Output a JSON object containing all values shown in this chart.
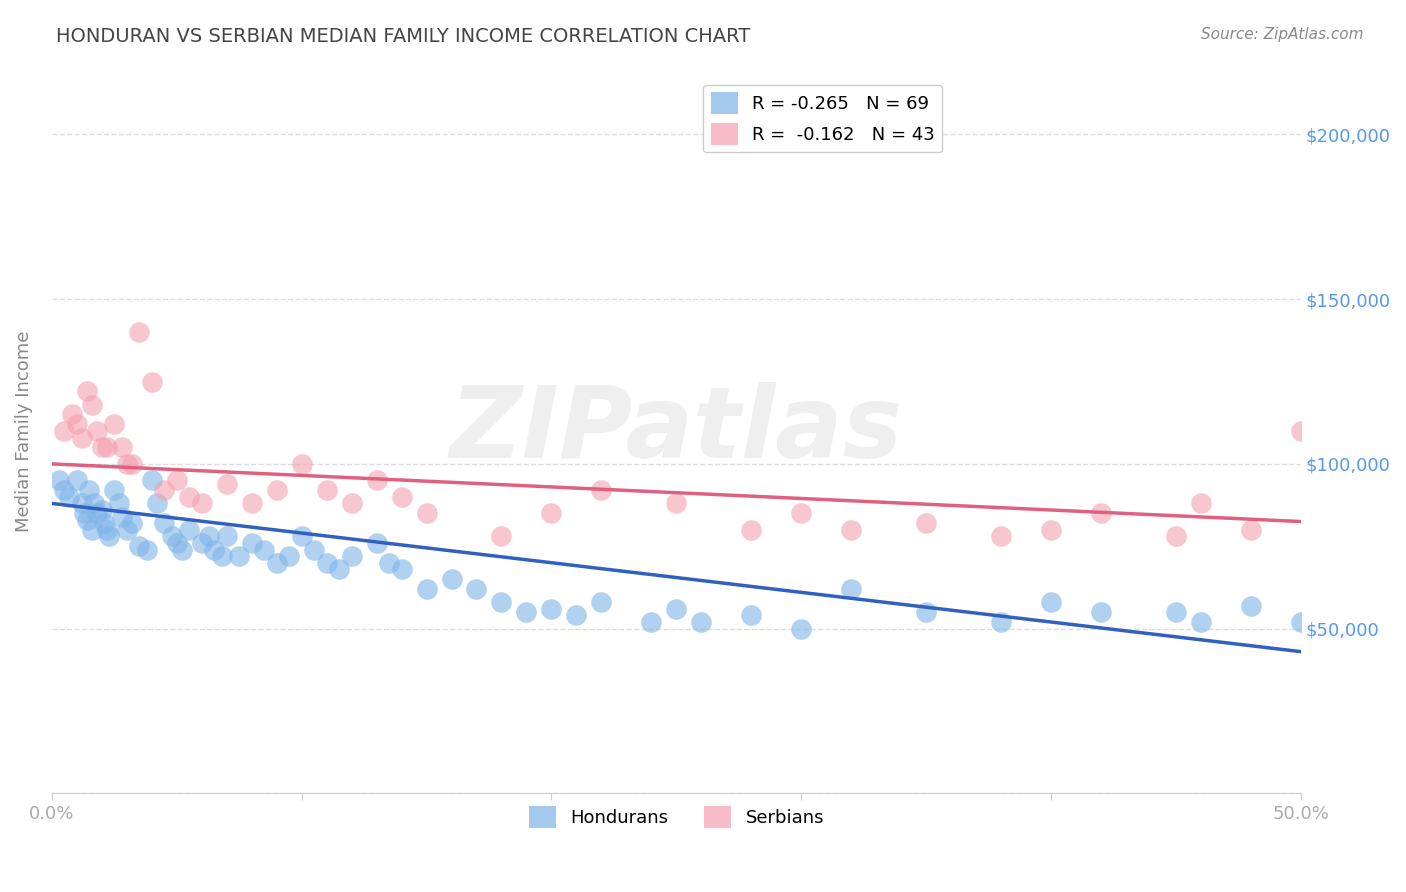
{
  "title": "HONDURAN VS SERBIAN MEDIAN FAMILY INCOME CORRELATION CHART",
  "source": "Source: ZipAtlas.com",
  "ylabel": "Median Family Income",
  "watermark": "ZIPatlas",
  "xlim": [
    0.0,
    50.0
  ],
  "ylim": [
    0,
    220000
  ],
  "yticks": [
    0,
    50000,
    100000,
    150000,
    200000
  ],
  "ytick_labels": [
    "",
    "$50,000",
    "$100,000",
    "$150,000",
    "$200,000"
  ],
  "legend_entry1": "R = -0.265   N = 69",
  "legend_entry2": "R =  -0.162   N = 43",
  "legend_label1": "Hondurans",
  "legend_label2": "Serbians",
  "honduran_color": "#7EB3E8",
  "serbian_color": "#F4A0B0",
  "trend_honduran_color": "#3060C0",
  "trend_serbian_color": "#E06080",
  "background_color": "#ffffff",
  "grid_color": "#dddddd",
  "title_color": "#444444",
  "axis_label_color": "#888888",
  "tick_color": "#aaaaaa",
  "right_ytick_color": "#5599EE",
  "honduran_intercept": 88000,
  "honduran_slope": -900,
  "serbian_intercept": 100000,
  "serbian_slope": -350,
  "honduran_x": [
    0.3,
    0.5,
    0.7,
    1.0,
    1.2,
    1.3,
    1.4,
    1.5,
    1.6,
    1.7,
    1.8,
    2.0,
    2.1,
    2.2,
    2.3,
    2.5,
    2.7,
    2.8,
    3.0,
    3.2,
    3.5,
    3.8,
    4.0,
    4.2,
    4.5,
    4.8,
    5.0,
    5.2,
    5.5,
    6.0,
    6.3,
    6.5,
    6.8,
    7.0,
    7.5,
    8.0,
    8.5,
    9.0,
    9.5,
    10.0,
    10.5,
    11.0,
    11.5,
    12.0,
    13.0,
    13.5,
    14.0,
    15.0,
    16.0,
    17.0,
    18.0,
    19.0,
    20.0,
    21.0,
    22.0,
    24.0,
    25.0,
    26.0,
    28.0,
    30.0,
    32.0,
    35.0,
    38.0,
    40.0,
    42.0,
    45.0,
    46.0,
    48.0,
    50.0
  ],
  "honduran_y": [
    95000,
    92000,
    90000,
    95000,
    88000,
    85000,
    83000,
    92000,
    80000,
    88000,
    85000,
    86000,
    82000,
    80000,
    78000,
    92000,
    88000,
    84000,
    80000,
    82000,
    75000,
    74000,
    95000,
    88000,
    82000,
    78000,
    76000,
    74000,
    80000,
    76000,
    78000,
    74000,
    72000,
    78000,
    72000,
    76000,
    74000,
    70000,
    72000,
    78000,
    74000,
    70000,
    68000,
    72000,
    76000,
    70000,
    68000,
    62000,
    65000,
    62000,
    58000,
    55000,
    56000,
    54000,
    58000,
    52000,
    56000,
    52000,
    54000,
    50000,
    62000,
    55000,
    52000,
    58000,
    55000,
    55000,
    52000,
    57000,
    52000
  ],
  "serbian_x": [
    0.5,
    0.8,
    1.0,
    1.2,
    1.4,
    1.6,
    1.8,
    2.0,
    2.2,
    2.5,
    2.8,
    3.0,
    3.2,
    3.5,
    4.0,
    4.5,
    5.0,
    5.5,
    6.0,
    7.0,
    8.0,
    9.0,
    10.0,
    11.0,
    12.0,
    13.0,
    14.0,
    15.0,
    18.0,
    20.0,
    22.0,
    25.0,
    28.0,
    30.0,
    32.0,
    35.0,
    38.0,
    40.0,
    42.0,
    45.0,
    46.0,
    48.0,
    50.0
  ],
  "serbian_y": [
    110000,
    115000,
    112000,
    108000,
    122000,
    118000,
    110000,
    105000,
    105000,
    112000,
    105000,
    100000,
    100000,
    140000,
    125000,
    92000,
    95000,
    90000,
    88000,
    94000,
    88000,
    92000,
    100000,
    92000,
    88000,
    95000,
    90000,
    85000,
    78000,
    85000,
    92000,
    88000,
    80000,
    85000,
    80000,
    82000,
    78000,
    80000,
    85000,
    78000,
    88000,
    80000,
    110000
  ]
}
